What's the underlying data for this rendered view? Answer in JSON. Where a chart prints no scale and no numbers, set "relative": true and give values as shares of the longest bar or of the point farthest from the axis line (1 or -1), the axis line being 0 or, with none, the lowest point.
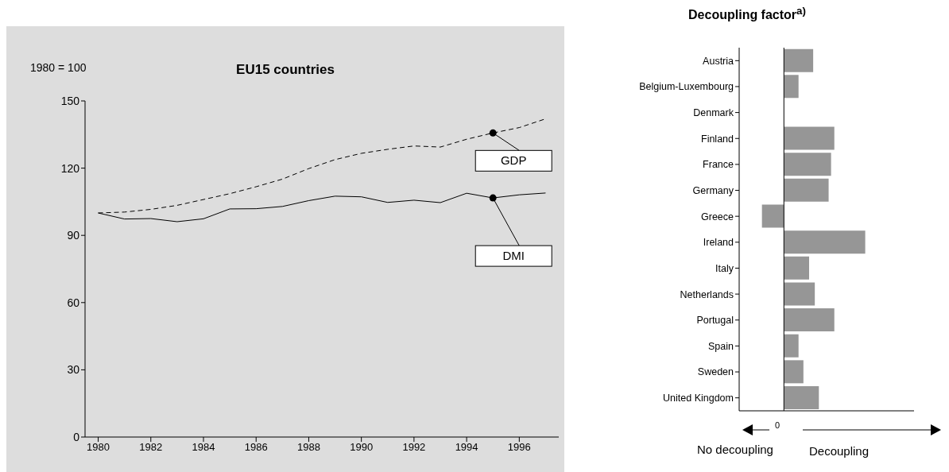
{
  "chart_data": [
    {
      "type": "line",
      "title": "EU15 countries",
      "ylabel": "1980 = 100",
      "x": [
        1980,
        1981,
        1982,
        1983,
        1984,
        1985,
        1986,
        1987,
        1988,
        1989,
        1990,
        1991,
        1992,
        1993,
        1994,
        1995,
        1996,
        1997
      ],
      "series": [
        {
          "color": "#000000",
          "line_style": "dashed",
          "values": [
            100,
            100.4,
            101.6,
            103.4,
            106,
            108.6,
            111.7,
            115.1,
            119.8,
            123.8,
            126.6,
            128.4,
            129.9,
            129.4,
            132.9,
            135.7,
            138.1,
            142
          ]
        },
        {
          "color": "#000000",
          "line_style": "solid",
          "values": [
            100,
            97.3,
            97.5,
            96.1,
            97.4,
            101.8,
            101.9,
            102.9,
            105.5,
            107.5,
            107.2,
            104.7,
            105.7,
            104.6,
            108.8,
            106.7,
            108.1,
            108.9
          ]
        }
      ],
      "xlim": [
        1979.5,
        1997.5
      ],
      "xticks": [
        1980,
        1982,
        1984,
        1986,
        1988,
        1990,
        1992,
        1994,
        1996
      ],
      "ylim": [
        0,
        150
      ],
      "yticks": [
        0,
        30,
        60,
        90,
        120,
        150
      ],
      "grid": false,
      "legend": false,
      "marker": "none",
      "annotations": [
        {
          "text": "GDP",
          "x": 1995,
          "y": 135.7
        },
        {
          "text": "DMI",
          "x": 1995,
          "y": 106.7
        }
      ]
    },
    {
      "type": "bar",
      "orientation": "horizontal",
      "relative": true,
      "title": "Decoupling factor$^{a)}$",
      "categories": [
        "Austria",
        "Belgium-Luxembourg",
        "Denmark",
        "Finland",
        "France",
        "Germany",
        "Greece",
        "Ireland",
        "Italy",
        "Netherlands",
        "Portugal",
        "Spain",
        "Sweden",
        "United Kingdom"
      ],
      "values": [
        0.36,
        0.18,
        null,
        0.62,
        0.58,
        0.55,
        -0.27,
        1,
        0.31,
        0.38,
        0.62,
        0.18,
        0.24,
        0.43
      ],
      "color": "#969696",
      "grid": false,
      "legend": false,
      "annotations": [
        "0",
        "No decoupling",
        "Decoupling"
      ]
    }
  ]
}
